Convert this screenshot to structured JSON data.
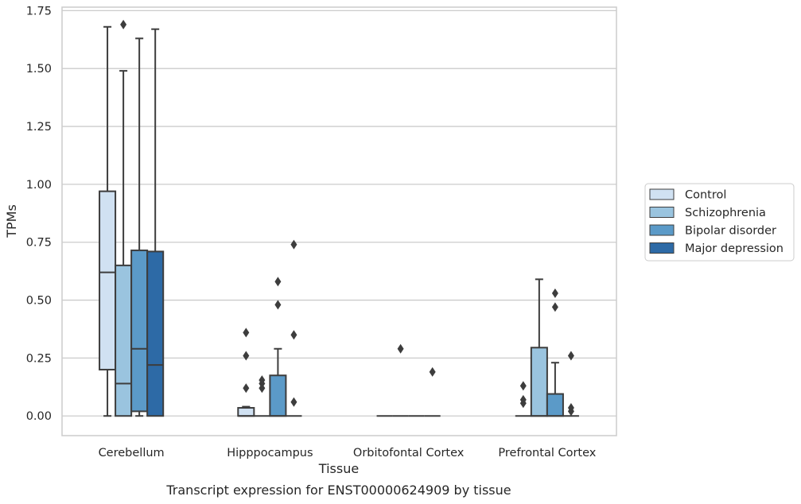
{
  "chart_data": {
    "type": "boxplot",
    "caption": "Transcript expression for ENST00000624909 by tissue",
    "xlabel": "Tissue",
    "ylabel": "TPMs",
    "ylim": [
      -0.085,
      1.765
    ],
    "yticks": [
      "0.00",
      "0.25",
      "0.50",
      "0.75",
      "1.00",
      "1.25",
      "1.50",
      "1.75"
    ],
    "ytick_values": [
      0,
      0.25,
      0.5,
      0.75,
      1.0,
      1.25,
      1.5,
      1.75
    ],
    "grid": "horizontal",
    "legend_position": "right",
    "categories": [
      "Cerebellum",
      "Hipppocampus",
      "Orbitofontal Cortex",
      "Prefrontal Cortex"
    ],
    "series": [
      {
        "name": "Control",
        "color": "#d0e1f2",
        "boxes": [
          {
            "whislo": 0,
            "q1": 0.2,
            "med": 0.62,
            "q3": 0.97,
            "whishi": 1.68,
            "fliers": []
          },
          {
            "whislo": 0,
            "q1": 0,
            "med": 0,
            "q3": 0.035,
            "whishi": 0.04,
            "fliers": [
              0.12,
              0.26,
              0.36
            ]
          },
          {
            "whislo": 0,
            "q1": 0,
            "med": 0,
            "q3": 0,
            "whishi": 0,
            "fliers": []
          },
          {
            "whislo": 0,
            "q1": 0,
            "med": 0,
            "q3": 0,
            "whishi": 0,
            "fliers": [
              0.055,
              0.07,
              0.13
            ]
          }
        ]
      },
      {
        "name": "Schizophrenia",
        "color": "#9ac4df",
        "boxes": [
          {
            "whislo": 0,
            "q1": 0,
            "med": 0.14,
            "q3": 0.65,
            "whishi": 1.49,
            "fliers": [
              1.69
            ]
          },
          {
            "whislo": 0,
            "q1": 0,
            "med": 0,
            "q3": 0,
            "whishi": 0,
            "fliers": [
              0.12,
              0.14,
              0.155
            ]
          },
          {
            "whislo": 0,
            "q1": 0,
            "med": 0,
            "q3": 0,
            "whishi": 0,
            "fliers": [
              0.29
            ]
          },
          {
            "whislo": 0,
            "q1": 0,
            "med": 0,
            "q3": 0.295,
            "whishi": 0.59,
            "fliers": []
          }
        ]
      },
      {
        "name": "Bipolar disorder",
        "color": "#5b9ac8",
        "boxes": [
          {
            "whislo": 0,
            "q1": 0.02,
            "med": 0.29,
            "q3": 0.715,
            "whishi": 1.63,
            "fliers": []
          },
          {
            "whislo": 0,
            "q1": 0,
            "med": 0,
            "q3": 0.175,
            "whishi": 0.29,
            "fliers": [
              0.48,
              0.58
            ]
          },
          {
            "whislo": 0,
            "q1": 0,
            "med": 0,
            "q3": 0,
            "whishi": 0,
            "fliers": []
          },
          {
            "whislo": 0,
            "q1": 0,
            "med": 0,
            "q3": 0.095,
            "whishi": 0.23,
            "fliers": [
              0.47,
              0.53
            ]
          }
        ]
      },
      {
        "name": "Major depression",
        "color": "#2d6aa6",
        "boxes": [
          {
            "whislo": 0,
            "q1": 0,
            "med": 0.22,
            "q3": 0.71,
            "whishi": 1.67,
            "fliers": []
          },
          {
            "whislo": 0,
            "q1": 0,
            "med": 0,
            "q3": 0,
            "whishi": 0,
            "fliers": [
              0.06,
              0.35,
              0.74
            ]
          },
          {
            "whislo": 0,
            "q1": 0,
            "med": 0,
            "q3": 0,
            "whishi": 0,
            "fliers": [
              0.19
            ]
          },
          {
            "whislo": 0,
            "q1": 0,
            "med": 0,
            "q3": 0,
            "whishi": 0,
            "fliers": [
              0.02,
              0.035,
              0.26
            ]
          }
        ]
      }
    ]
  }
}
